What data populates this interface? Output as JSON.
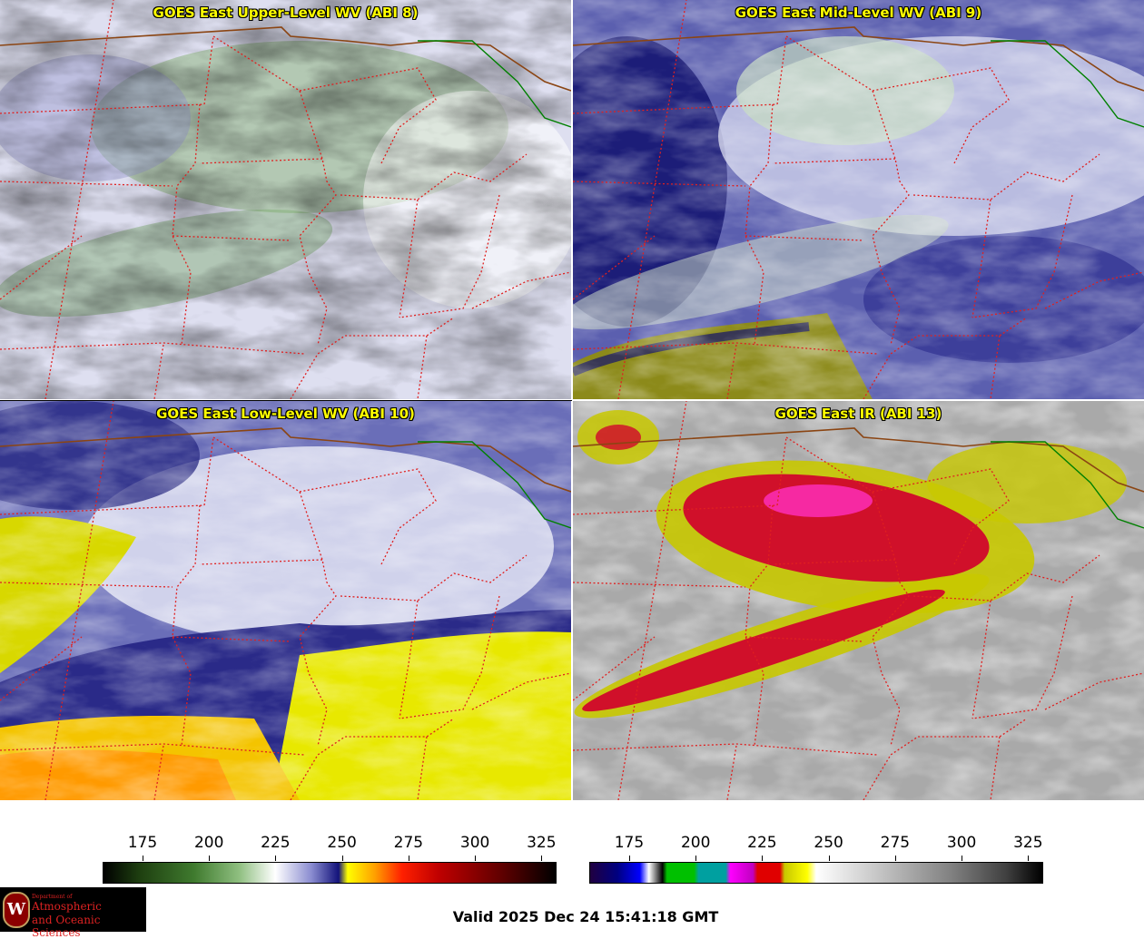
{
  "panels": [
    {
      "title": "GOES East Upper-Level WV (ABI 8)",
      "palette": "upper"
    },
    {
      "title": "GOES East Mid-Level WV (ABI 9)",
      "palette": "mid"
    },
    {
      "title": "GOES East Low-Level WV (ABI 10)",
      "palette": "low"
    },
    {
      "title": "GOES East IR (ABI 13)",
      "palette": "ir"
    }
  ],
  "colorbars": [
    {
      "name": "wv-colorbar",
      "ticks": [
        "175",
        "200",
        "225",
        "250",
        "275",
        "300",
        "325"
      ]
    },
    {
      "name": "ir-colorbar",
      "ticks": [
        "175",
        "200",
        "225",
        "250",
        "275",
        "300",
        "325"
      ]
    }
  ],
  "logo": {
    "line1": "Department of",
    "line2": "Atmospheric",
    "line3": "and Oceanic Sciences",
    "mark": "W"
  },
  "valid_time": "Valid 2025 Dec 24 15:41:18 GMT",
  "colors": {
    "state_border": "#e02020",
    "country_border": "#8b4513",
    "lake_border": "#008000",
    "title": "#ffff00"
  }
}
